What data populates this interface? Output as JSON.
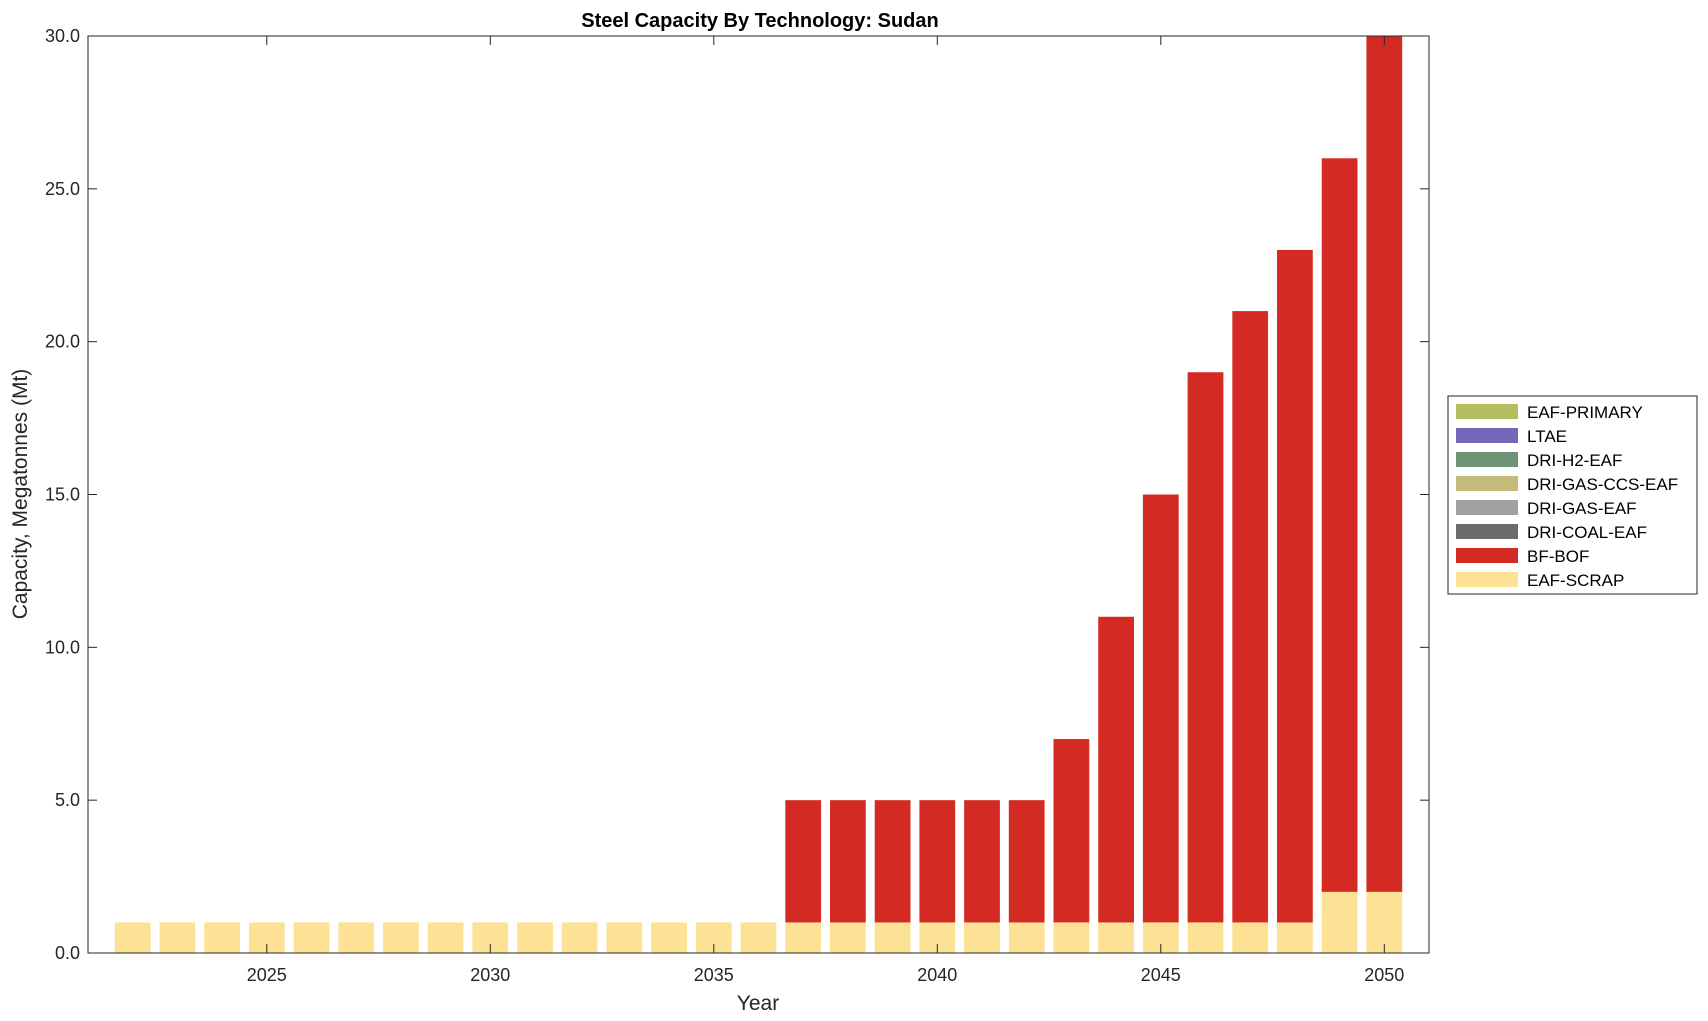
{
  "chart_data": {
    "type": "bar",
    "stacked": true,
    "title": "Steel Capacity By Technology: Sudan",
    "xlabel": "Year",
    "ylabel": "Capacity, Megatonnes (Mt)",
    "ylim": [
      0,
      30
    ],
    "yticks": [
      "0.0",
      "5.0",
      "10.0",
      "15.0",
      "20.0",
      "25.0",
      "30.0"
    ],
    "xlim": [
      2021,
      2051
    ],
    "xticks": [
      "2025",
      "2030",
      "2035",
      "2040",
      "2045",
      "2050"
    ],
    "legend_position": "right",
    "categories": [
      2022,
      2023,
      2024,
      2025,
      2026,
      2027,
      2028,
      2029,
      2030,
      2031,
      2032,
      2033,
      2034,
      2035,
      2036,
      2037,
      2038,
      2039,
      2040,
      2041,
      2042,
      2043,
      2044,
      2045,
      2046,
      2047,
      2048,
      2049,
      2050
    ],
    "series": [
      {
        "name": "EAF-PRIMARY",
        "color": "#b5bd61",
        "values": [
          0,
          0,
          0,
          0,
          0,
          0,
          0,
          0,
          0,
          0,
          0,
          0,
          0,
          0,
          0,
          0,
          0,
          0,
          0,
          0,
          0,
          0,
          0,
          0,
          0,
          0,
          0,
          0,
          0
        ]
      },
      {
        "name": "LTAE",
        "color": "#7568ba",
        "values": [
          0,
          0,
          0,
          0,
          0,
          0,
          0,
          0,
          0,
          0,
          0,
          0,
          0,
          0,
          0,
          0,
          0,
          0,
          0,
          0,
          0,
          0,
          0,
          0,
          0,
          0,
          0,
          0,
          0
        ]
      },
      {
        "name": "DRI-H2-EAF",
        "color": "#6e9476",
        "values": [
          0,
          0,
          0,
          0,
          0,
          0,
          0,
          0,
          0,
          0,
          0,
          0,
          0,
          0,
          0,
          0,
          0,
          0,
          0,
          0,
          0,
          0,
          0,
          0,
          0,
          0,
          0,
          0,
          0
        ]
      },
      {
        "name": "DRI-GAS-CCS-EAF",
        "color": "#c4bb7a",
        "values": [
          0,
          0,
          0,
          0,
          0,
          0,
          0,
          0,
          0,
          0,
          0,
          0,
          0,
          0,
          0,
          0,
          0,
          0,
          0,
          0,
          0,
          0,
          0,
          0,
          0,
          0,
          0,
          0,
          0
        ]
      },
      {
        "name": "DRI-GAS-EAF",
        "color": "#a0a0a0",
        "values": [
          0,
          0,
          0,
          0,
          0,
          0,
          0,
          0,
          0,
          0,
          0,
          0,
          0,
          0,
          0,
          0,
          0,
          0,
          0,
          0,
          0,
          0,
          0,
          0,
          0,
          0,
          0,
          0,
          0
        ]
      },
      {
        "name": "DRI-COAL-EAF",
        "color": "#6b6b6b",
        "values": [
          0,
          0,
          0,
          0,
          0,
          0,
          0,
          0,
          0,
          0,
          0,
          0,
          0,
          0,
          0,
          0,
          0,
          0,
          0,
          0,
          0,
          0,
          0,
          0,
          0,
          0,
          0,
          0,
          0
        ]
      },
      {
        "name": "BF-BOF",
        "color": "#d32b24",
        "values": [
          0,
          0,
          0,
          0,
          0,
          0,
          0,
          0,
          0,
          0,
          0,
          0,
          0,
          0,
          0,
          4,
          4,
          4,
          4,
          4,
          4,
          6,
          10,
          14,
          18,
          20,
          22,
          24,
          28
        ]
      },
      {
        "name": "EAF-SCRAP",
        "color": "#fde295",
        "values": [
          1,
          1,
          1,
          1,
          1,
          1,
          1,
          1,
          1,
          1,
          1,
          1,
          1,
          1,
          1,
          1,
          1,
          1,
          1,
          1,
          1,
          1,
          1,
          1,
          1,
          1,
          1,
          2,
          2
        ]
      }
    ]
  }
}
